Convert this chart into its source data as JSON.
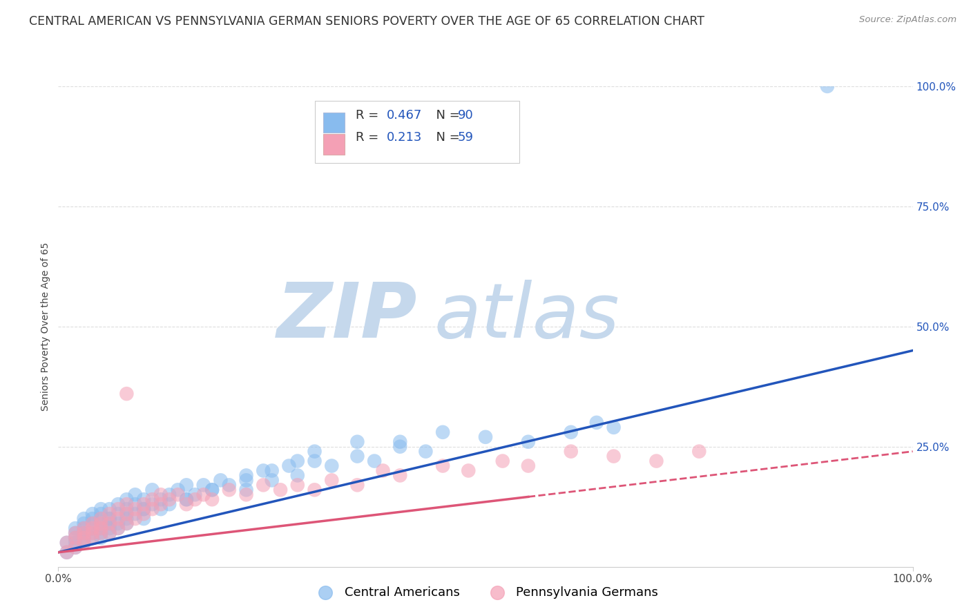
{
  "title": "CENTRAL AMERICAN VS PENNSYLVANIA GERMAN SENIORS POVERTY OVER THE AGE OF 65 CORRELATION CHART",
  "source": "Source: ZipAtlas.com",
  "ylabel": "Seniors Poverty Over the Age of 65",
  "xlim": [
    0,
    1
  ],
  "ylim": [
    0,
    1
  ],
  "xtick_labels": [
    "0.0%",
    "100.0%"
  ],
  "ytick_labels": [
    "25.0%",
    "50.0%",
    "75.0%",
    "100.0%"
  ],
  "ytick_vals": [
    0.25,
    0.5,
    0.75,
    1.0
  ],
  "blue_R": 0.467,
  "blue_N": 90,
  "pink_R": 0.213,
  "pink_N": 59,
  "blue_color": "#88bbee",
  "pink_color": "#f4a0b5",
  "blue_line_color": "#2255bb",
  "pink_line_color": "#dd5577",
  "legend_label_blue": "Central Americans",
  "legend_label_pink": "Pennsylvania Germans",
  "watermark_zip": "ZIP",
  "watermark_atlas": "atlas",
  "watermark_color_zip": "#c5d8ec",
  "watermark_color_atlas": "#c5d8ec",
  "title_fontsize": 12.5,
  "axis_label_fontsize": 10,
  "tick_fontsize": 11,
  "legend_fontsize": 13,
  "blue_scatter_x": [
    0.01,
    0.01,
    0.02,
    0.02,
    0.02,
    0.02,
    0.02,
    0.03,
    0.03,
    0.03,
    0.03,
    0.03,
    0.03,
    0.03,
    0.04,
    0.04,
    0.04,
    0.04,
    0.04,
    0.04,
    0.05,
    0.05,
    0.05,
    0.05,
    0.05,
    0.05,
    0.05,
    0.06,
    0.06,
    0.06,
    0.06,
    0.06,
    0.07,
    0.07,
    0.07,
    0.07,
    0.08,
    0.08,
    0.08,
    0.08,
    0.09,
    0.09,
    0.09,
    0.1,
    0.1,
    0.1,
    0.11,
    0.11,
    0.12,
    0.12,
    0.13,
    0.13,
    0.14,
    0.15,
    0.15,
    0.16,
    0.17,
    0.18,
    0.19,
    0.2,
    0.22,
    0.22,
    0.24,
    0.25,
    0.27,
    0.28,
    0.3,
    0.32,
    0.35,
    0.37,
    0.4,
    0.43,
    0.45,
    0.5,
    0.55,
    0.6,
    0.63,
    0.65,
    0.28,
    0.3,
    0.35,
    0.4,
    0.22,
    0.25,
    0.18,
    0.9,
    0.15,
    0.1,
    0.08,
    0.06
  ],
  "blue_scatter_y": [
    0.03,
    0.05,
    0.06,
    0.04,
    0.07,
    0.05,
    0.08,
    0.07,
    0.09,
    0.06,
    0.08,
    0.1,
    0.05,
    0.07,
    0.09,
    0.06,
    0.08,
    0.1,
    0.07,
    0.11,
    0.08,
    0.1,
    0.07,
    0.12,
    0.09,
    0.06,
    0.11,
    0.1,
    0.08,
    0.12,
    0.09,
    0.07,
    0.11,
    0.09,
    0.13,
    0.08,
    0.12,
    0.1,
    0.14,
    0.09,
    0.13,
    0.11,
    0.15,
    0.12,
    0.14,
    0.1,
    0.13,
    0.16,
    0.14,
    0.12,
    0.15,
    0.13,
    0.16,
    0.14,
    0.17,
    0.15,
    0.17,
    0.16,
    0.18,
    0.17,
    0.19,
    0.16,
    0.2,
    0.18,
    0.21,
    0.19,
    0.22,
    0.21,
    0.23,
    0.22,
    0.26,
    0.24,
    0.28,
    0.27,
    0.26,
    0.28,
    0.3,
    0.29,
    0.22,
    0.24,
    0.26,
    0.25,
    0.18,
    0.2,
    0.16,
    1.0,
    0.14,
    0.12,
    0.11,
    0.1
  ],
  "pink_scatter_x": [
    0.01,
    0.01,
    0.02,
    0.02,
    0.02,
    0.03,
    0.03,
    0.03,
    0.03,
    0.04,
    0.04,
    0.04,
    0.04,
    0.05,
    0.05,
    0.05,
    0.05,
    0.06,
    0.06,
    0.06,
    0.07,
    0.07,
    0.07,
    0.08,
    0.08,
    0.08,
    0.09,
    0.09,
    0.1,
    0.1,
    0.11,
    0.11,
    0.12,
    0.12,
    0.13,
    0.14,
    0.15,
    0.16,
    0.17,
    0.18,
    0.2,
    0.22,
    0.24,
    0.26,
    0.28,
    0.3,
    0.32,
    0.35,
    0.38,
    0.4,
    0.45,
    0.48,
    0.52,
    0.55,
    0.6,
    0.65,
    0.7,
    0.75,
    0.08
  ],
  "pink_scatter_y": [
    0.03,
    0.05,
    0.04,
    0.06,
    0.07,
    0.05,
    0.07,
    0.08,
    0.06,
    0.07,
    0.09,
    0.06,
    0.08,
    0.08,
    0.1,
    0.07,
    0.09,
    0.09,
    0.07,
    0.11,
    0.1,
    0.08,
    0.12,
    0.11,
    0.09,
    0.13,
    0.12,
    0.1,
    0.13,
    0.11,
    0.14,
    0.12,
    0.15,
    0.13,
    0.14,
    0.15,
    0.13,
    0.14,
    0.15,
    0.14,
    0.16,
    0.15,
    0.17,
    0.16,
    0.17,
    0.16,
    0.18,
    0.17,
    0.2,
    0.19,
    0.21,
    0.2,
    0.22,
    0.21,
    0.24,
    0.23,
    0.22,
    0.24,
    0.36
  ],
  "blue_trend": [
    0.03,
    0.45
  ],
  "pink_trend_solid": [
    0.03,
    0.2
  ],
  "pink_trend_dashed": [
    0.2,
    0.24
  ],
  "grid_color": "#dddddd",
  "background_color": "#ffffff"
}
